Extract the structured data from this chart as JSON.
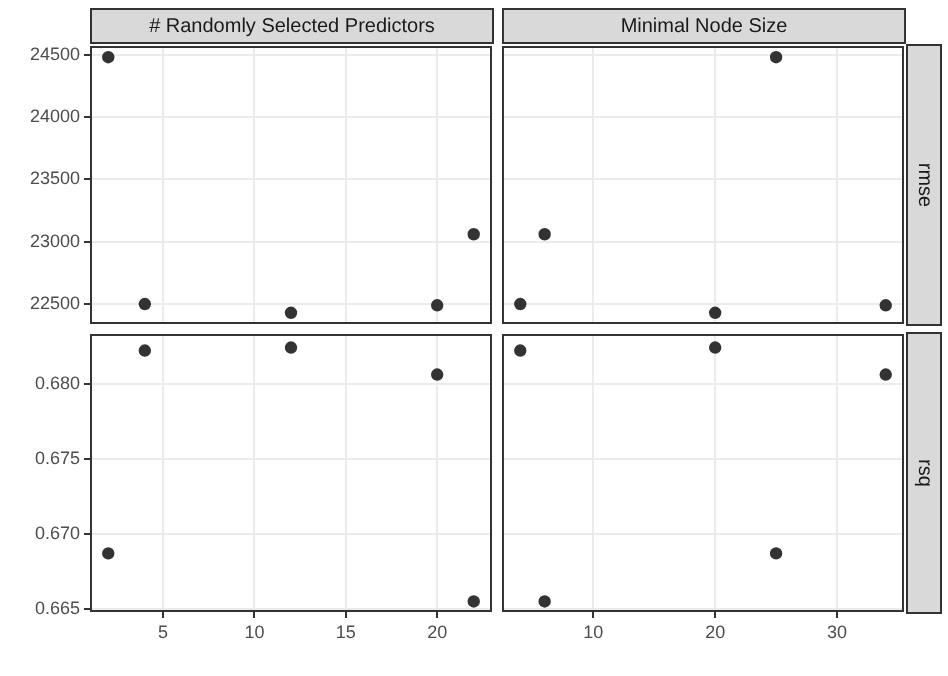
{
  "chart_data": [
    {
      "type": "scatter",
      "title": "# Randomly Selected Predictors",
      "x": [
        2,
        4,
        12,
        20,
        22
      ],
      "values": [
        24480,
        22500,
        22430,
        22490,
        23060
      ],
      "color": "#333333",
      "marker": "circle",
      "xlim": [
        1,
        23
      ],
      "xticks": [
        5,
        10,
        15,
        20
      ],
      "ylim": [
        22340,
        24570
      ],
      "yticks": [
        22500,
        23000,
        23500,
        24000,
        24500
      ],
      "grid": true,
      "tick_labels": "y"
    },
    {
      "type": "scatter",
      "title": "Minimal Node Size",
      "ylabel": "rmse",
      "x": [
        4,
        6,
        20,
        25,
        34
      ],
      "values": [
        22500,
        23060,
        22430,
        24480,
        22490
      ],
      "color": "#333333",
      "marker": "circle",
      "xlim": [
        2.5,
        35.5
      ],
      "xticks": [
        10,
        20,
        30
      ],
      "ylim": [
        22340,
        24570
      ],
      "yticks": [
        22500,
        23000,
        23500,
        24000,
        24500
      ],
      "grid": true,
      "tick_labels": false
    },
    {
      "type": "scatter",
      "x": [
        2,
        4,
        12,
        20,
        22
      ],
      "values": [
        0.6687,
        0.6822,
        0.6824,
        0.6806,
        0.6655
      ],
      "color": "#333333",
      "marker": "circle",
      "xlim": [
        1,
        23
      ],
      "xticks": [
        5,
        10,
        15,
        20
      ],
      "ylim": [
        0.6648,
        0.6833
      ],
      "yticks": [
        0.665,
        {
          "value": 0.67,
          "label": "0.670"
        },
        0.675,
        {
          "value": 0.68,
          "label": "0.680"
        }
      ],
      "grid": true
    },
    {
      "type": "scatter",
      "ylabel": "rsq",
      "x": [
        4,
        6,
        20,
        25,
        34
      ],
      "values": [
        0.6822,
        0.6655,
        0.6824,
        0.6687,
        0.6806
      ],
      "color": "#333333",
      "marker": "circle",
      "xlim": [
        2.5,
        35.5
      ],
      "xticks": [
        10,
        20,
        30
      ],
      "ylim": [
        0.6648,
        0.6833
      ],
      "yticks": [
        0.665,
        0.67,
        0.675,
        0.68
      ],
      "grid": true,
      "tick_labels": "x"
    }
  ]
}
